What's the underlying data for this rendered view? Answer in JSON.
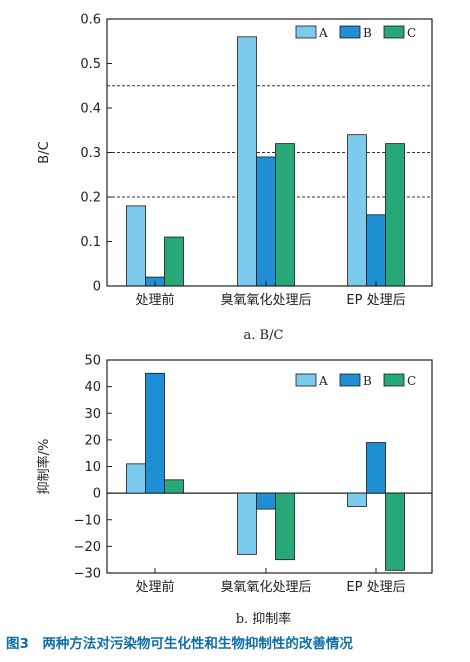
{
  "chart_data": [
    {
      "type": "bar",
      "categories": [
        "处理前",
        "臭氧氧化处理后",
        "EP 处理后"
      ],
      "series": [
        {
          "name": "A",
          "values": [
            0.18,
            0.56,
            0.34
          ]
        },
        {
          "name": "B",
          "values": [
            0.02,
            0.29,
            0.16
          ]
        },
        {
          "name": "C",
          "values": [
            0.11,
            0.32,
            0.32
          ]
        }
      ],
      "xlabel": "",
      "ylabel": "B/C",
      "ylim": [
        0,
        0.6
      ],
      "yticks": [
        "0",
        "0.1",
        "0.2",
        "0.3",
        "0.4",
        "0.5",
        "0.6"
      ],
      "reference_lines": [
        0.2,
        0.3,
        0.45
      ],
      "subtitle": "a. B/C",
      "legend": "top-right"
    },
    {
      "type": "bar",
      "categories": [
        "处理前",
        "臭氧氧化处理后",
        "EP 处理后"
      ],
      "series": [
        {
          "name": "A",
          "values": [
            11,
            -23,
            -5
          ]
        },
        {
          "name": "B",
          "values": [
            45,
            -6,
            19
          ]
        },
        {
          "name": "C",
          "values": [
            5,
            -25,
            -29
          ]
        }
      ],
      "xlabel": "",
      "ylabel": "抑制率/%",
      "ylim": [
        -30,
        50
      ],
      "yticks": [
        "−30",
        "−20",
        "−10",
        "0",
        "10",
        "20",
        "30",
        "40",
        "50"
      ],
      "subtitle": "b. 抑制率",
      "legend": "top-right"
    }
  ],
  "colors": {
    "A": "#7ccbef",
    "B": "#1f8fd4",
    "C": "#27a876",
    "caption": "#0f6ea8"
  },
  "caption": "图3　两种方法对污染物可生化性和生物抑制性的改善情况"
}
